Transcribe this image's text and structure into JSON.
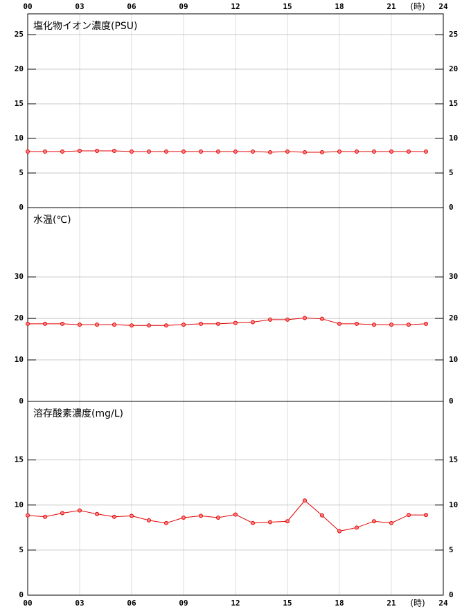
{
  "chart_data": [
    {
      "type": "line",
      "title": "塩化物イオン濃度(PSU)",
      "x": [
        0,
        1,
        2,
        3,
        4,
        5,
        6,
        7,
        8,
        9,
        10,
        11,
        12,
        13,
        14,
        15,
        16,
        17,
        18,
        19,
        20,
        21,
        22,
        23
      ],
      "xlim": [
        0,
        24
      ],
      "xticks": [
        {
          "value": 0,
          "label": "00"
        },
        {
          "value": 3,
          "label": "03"
        },
        {
          "value": 6,
          "label": "06"
        },
        {
          "value": 9,
          "label": "09"
        },
        12,
        15,
        18,
        21,
        24
      ],
      "xlabel": "(時)",
      "series": [
        {
          "color": "#e00000",
          "values": [
            8.1,
            8.1,
            8.1,
            8.2,
            8.2,
            8.2,
            8.1,
            8.1,
            8.1,
            8.1,
            8.1,
            8.1,
            8.1,
            8.1,
            8.0,
            8.1,
            8.0,
            8.0,
            8.1,
            8.1,
            8.1,
            8.1,
            8.1,
            8.1
          ]
        }
      ],
      "ylim": [
        0,
        28
      ],
      "yticks": [
        0,
        5,
        10,
        15,
        20,
        25
      ],
      "grid": true
    },
    {
      "type": "line",
      "title": "水温(℃)",
      "x": [
        0,
        1,
        2,
        3,
        4,
        5,
        6,
        7,
        8,
        9,
        10,
        11,
        12,
        13,
        14,
        15,
        16,
        17,
        18,
        19,
        20,
        21,
        22,
        23
      ],
      "xlim": [
        0,
        24
      ],
      "xticks": [
        0,
        3,
        6,
        9,
        12,
        15,
        18,
        21,
        24
      ],
      "series": [
        {
          "color": "#e00000",
          "values": [
            18.7,
            18.7,
            18.7,
            18.5,
            18.5,
            18.5,
            18.3,
            18.3,
            18.3,
            18.5,
            18.7,
            18.7,
            18.9,
            19.1,
            19.7,
            19.7,
            20.1,
            19.9,
            18.7,
            18.7,
            18.5,
            18.5,
            18.5,
            18.7
          ]
        }
      ],
      "ylim": [
        0,
        46.7
      ],
      "yticks": [
        0,
        10,
        20,
        30
      ],
      "grid": true
    },
    {
      "type": "line",
      "title": "溶存酸素濃度(mg/L)",
      "x": [
        0,
        1,
        2,
        3,
        4,
        5,
        6,
        7,
        8,
        9,
        10,
        11,
        12,
        13,
        14,
        15,
        16,
        17,
        18,
        19,
        20,
        21,
        22,
        23
      ],
      "xlim": [
        0,
        24
      ],
      "xticks": [
        {
          "value": 0,
          "label": "00"
        },
        {
          "value": 3,
          "label": "03"
        },
        {
          "value": 6,
          "label": "06"
        },
        {
          "value": 9,
          "label": "09"
        },
        12,
        15,
        18,
        21,
        24
      ],
      "xlabel": "(時)",
      "series": [
        {
          "color": "#e00000",
          "values": [
            8.85,
            8.7,
            9.1,
            9.4,
            9.0,
            8.7,
            8.8,
            8.3,
            8.0,
            8.6,
            8.8,
            8.6,
            8.95,
            8.0,
            8.1,
            8.2,
            10.5,
            8.85,
            7.1,
            7.5,
            8.2,
            8.0,
            8.9,
            8.9
          ]
        }
      ],
      "ylim": [
        0,
        21.5
      ],
      "yticks": [
        0,
        5,
        10,
        15
      ],
      "grid": true
    }
  ]
}
